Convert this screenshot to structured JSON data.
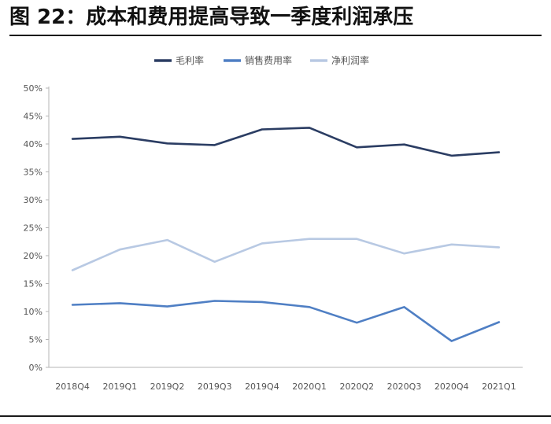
{
  "figure": {
    "title": "图 22：成本和费用提高导致一季度利润承压"
  },
  "chart_data": {
    "type": "line",
    "title": "",
    "xlabel": "",
    "ylabel": "",
    "categories": [
      "2018Q4",
      "2019Q1",
      "2019Q2",
      "2019Q3",
      "2019Q4",
      "2020Q1",
      "2020Q2",
      "2020Q3",
      "2020Q4",
      "2021Q1"
    ],
    "y_ticks": [
      "0%",
      "5%",
      "10%",
      "15%",
      "20%",
      "25%",
      "30%",
      "35%",
      "40%",
      "45%",
      "50%"
    ],
    "ylim": [
      0,
      50
    ],
    "legend_position": "top",
    "series": [
      {
        "name": "毛利率",
        "color": "#2b3d63",
        "values": [
          40.9,
          41.3,
          40.1,
          39.8,
          42.6,
          42.9,
          39.4,
          39.9,
          37.9,
          38.5
        ]
      },
      {
        "name": "销售费用率",
        "color": "#4f7fc4",
        "values": [
          11.2,
          11.5,
          10.9,
          11.9,
          11.7,
          10.8,
          8.0,
          10.8,
          4.7,
          8.1
        ]
      },
      {
        "name": "净利润率",
        "color": "#b8c9e3",
        "values": [
          17.4,
          21.1,
          22.8,
          18.9,
          22.2,
          23.0,
          23.0,
          20.4,
          22.0,
          21.5
        ]
      }
    ]
  }
}
